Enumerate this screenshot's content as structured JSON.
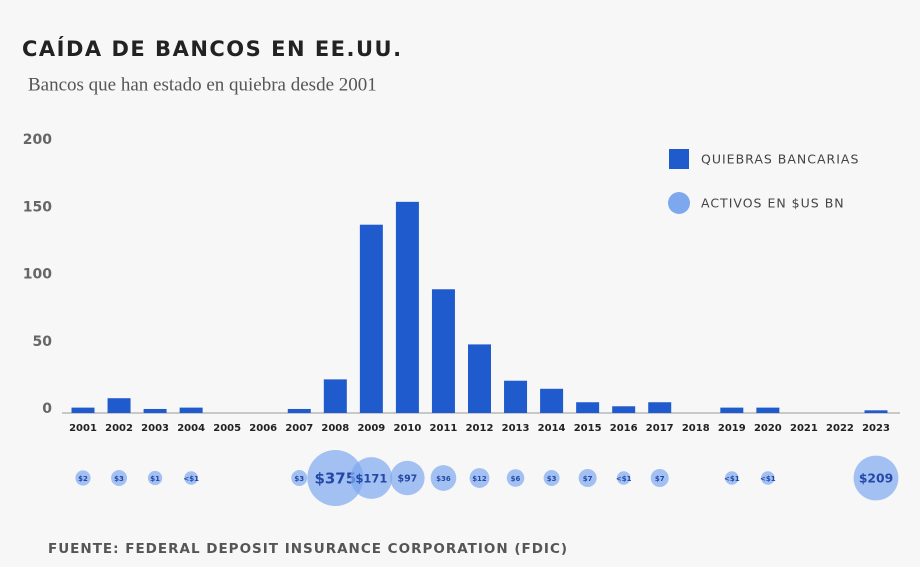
{
  "chart_data": {
    "type": "bar",
    "title": "CAÍDA DE BANCOS EN EE.UU.",
    "subtitle": "Bancos que han estado en quiebra desde 2001",
    "source": "FUENTE: FEDERAL DEPOSIT INSURANCE CORPORATION (FDIC)",
    "categories": [
      "2001",
      "2002",
      "2003",
      "2004",
      "2005",
      "2006",
      "2007",
      "2008",
      "2009",
      "2010",
      "2011",
      "2012",
      "2013",
      "2014",
      "2015",
      "2016",
      "2017",
      "2018",
      "2019",
      "2020",
      "2021",
      "2022",
      "2023"
    ],
    "series": [
      {
        "name": "QUIEBRAS BANCARIAS",
        "color": "#1f5bcc",
        "values": [
          4,
          11,
          3,
          4,
          0,
          0,
          3,
          25,
          140,
          157,
          92,
          51,
          24,
          18,
          8,
          5,
          8,
          0,
          4,
          4,
          0,
          0,
          2
        ]
      },
      {
        "name": "ACTIVOS EN $US BN",
        "color": "#7ea8ee",
        "values": [
          2,
          3,
          1,
          0.5,
          null,
          null,
          3,
          375,
          171,
          97,
          36,
          12,
          6,
          3,
          7,
          0.5,
          7,
          null,
          0.5,
          0.5,
          null,
          null,
          209
        ],
        "value_labels": [
          "$2",
          "$3",
          "$1",
          "<$1",
          null,
          null,
          "$3",
          "$375",
          "$171",
          "$97",
          "$36",
          "$12",
          "$6",
          "$3",
          "$7",
          "<$1",
          "$7",
          null,
          "<$1",
          "<$1",
          null,
          null,
          "$209"
        ]
      }
    ],
    "ylim": [
      0,
      200
    ],
    "yticks": [
      0,
      50,
      100,
      150,
      200
    ],
    "grid": false,
    "legend": "top-right"
  }
}
